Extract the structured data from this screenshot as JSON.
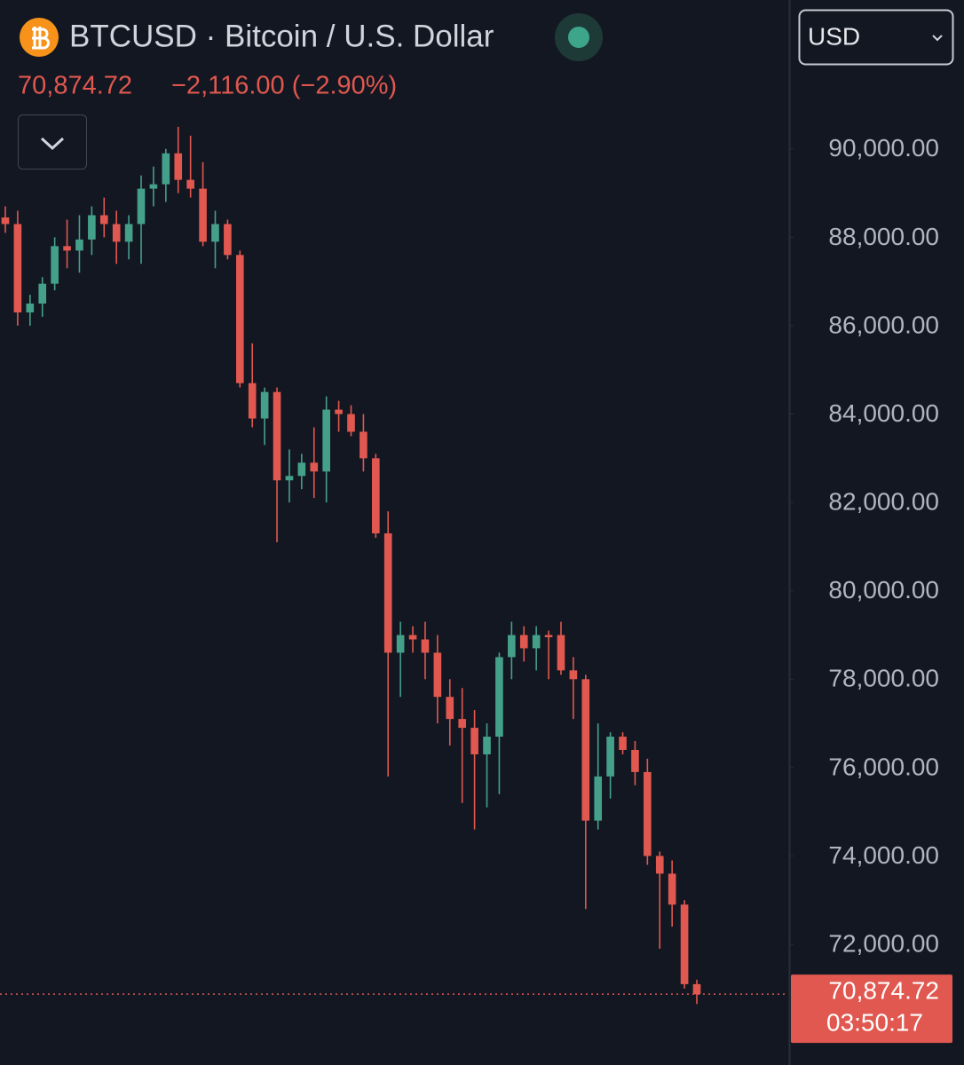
{
  "header": {
    "title": "BTCUSD · Bitcoin / U.S. Dollar",
    "price": "70,874.72",
    "change": "−2,116.00 (−2.90%)",
    "currency": "USD"
  },
  "chart_data": {
    "type": "candlestick",
    "up_color": "#45a08a",
    "down_color": "#e0584f",
    "open": [
      88450,
      88300,
      86300,
      86500,
      86950,
      87800,
      87700,
      87950,
      88500,
      88300,
      87900,
      88300,
      89100,
      89200,
      89900,
      89300,
      89100,
      87900,
      88300,
      87600,
      84700,
      83900,
      84500,
      82500,
      82600,
      82900,
      82700,
      84100,
      84000,
      83600,
      83000,
      81300,
      78600,
      79000,
      78900,
      78600,
      77600,
      77100,
      76900,
      76300,
      76700,
      78500,
      79000,
      78700,
      79000,
      79000,
      78200,
      78000,
      74800,
      75800,
      76700,
      76400,
      75900,
      74000,
      73600,
      72900,
      71100
    ],
    "high": [
      88700,
      88600,
      86700,
      87100,
      88000,
      88400,
      88500,
      88700,
      88900,
      88600,
      88500,
      89400,
      89600,
      90000,
      90500,
      90300,
      89700,
      88600,
      88400,
      87700,
      85600,
      84600,
      84600,
      83200,
      83100,
      83700,
      84400,
      84300,
      84200,
      84000,
      83100,
      81800,
      79300,
      79200,
      79300,
      79000,
      78000,
      77800,
      77300,
      77000,
      78600,
      79300,
      79200,
      79200,
      79100,
      79300,
      78500,
      78100,
      77000,
      76800,
      76800,
      76600,
      76200,
      74100,
      73900,
      73000,
      71200
    ],
    "low": [
      88100,
      86000,
      86000,
      86200,
      86800,
      87300,
      87200,
      87600,
      88000,
      87400,
      87500,
      87400,
      88700,
      88800,
      89000,
      88900,
      87800,
      87300,
      87500,
      84600,
      83700,
      83300,
      81100,
      82000,
      82300,
      82100,
      82000,
      83600,
      83500,
      82700,
      81200,
      75800,
      77600,
      78600,
      78000,
      77000,
      76500,
      75200,
      74600,
      75100,
      75400,
      78000,
      78400,
      78200,
      78000,
      78100,
      77100,
      72800,
      74600,
      75300,
      76300,
      75600,
      73800,
      71900,
      72400,
      71000,
      70650
    ],
    "close": [
      88300,
      86300,
      86500,
      86950,
      87800,
      87700,
      87950,
      88500,
      88300,
      87900,
      88300,
      89100,
      89200,
      89900,
      89300,
      89100,
      87900,
      88300,
      87600,
      84700,
      83900,
      84500,
      82500,
      82600,
      82900,
      82700,
      84100,
      84000,
      83600,
      83000,
      81300,
      78600,
      79000,
      78900,
      78600,
      77600,
      77100,
      76900,
      76300,
      76700,
      78500,
      79000,
      78700,
      79000,
      78950,
      78200,
      78000,
      74800,
      75800,
      76700,
      76400,
      75900,
      74000,
      73600,
      72900,
      71100,
      70870
    ],
    "ylim": [
      69270,
      93370
    ],
    "yticks": [
      {
        "value": 72000,
        "label": "72,000.00"
      },
      {
        "value": 74000,
        "label": "74,000.00"
      },
      {
        "value": 76000,
        "label": "76,000.00"
      },
      {
        "value": 78000,
        "label": "78,000.00"
      },
      {
        "value": 80000,
        "label": "80,000.00"
      },
      {
        "value": 82000,
        "label": "82,000.00"
      },
      {
        "value": 84000,
        "label": "84,000.00"
      },
      {
        "value": 86000,
        "label": "86,000.00"
      },
      {
        "value": 88000,
        "label": "88,000.00"
      },
      {
        "value": 90000,
        "label": "90,000.00"
      }
    ],
    "last_price": {
      "value": 70874.72,
      "label": "70,874.72"
    },
    "countdown": "03:50:17"
  }
}
